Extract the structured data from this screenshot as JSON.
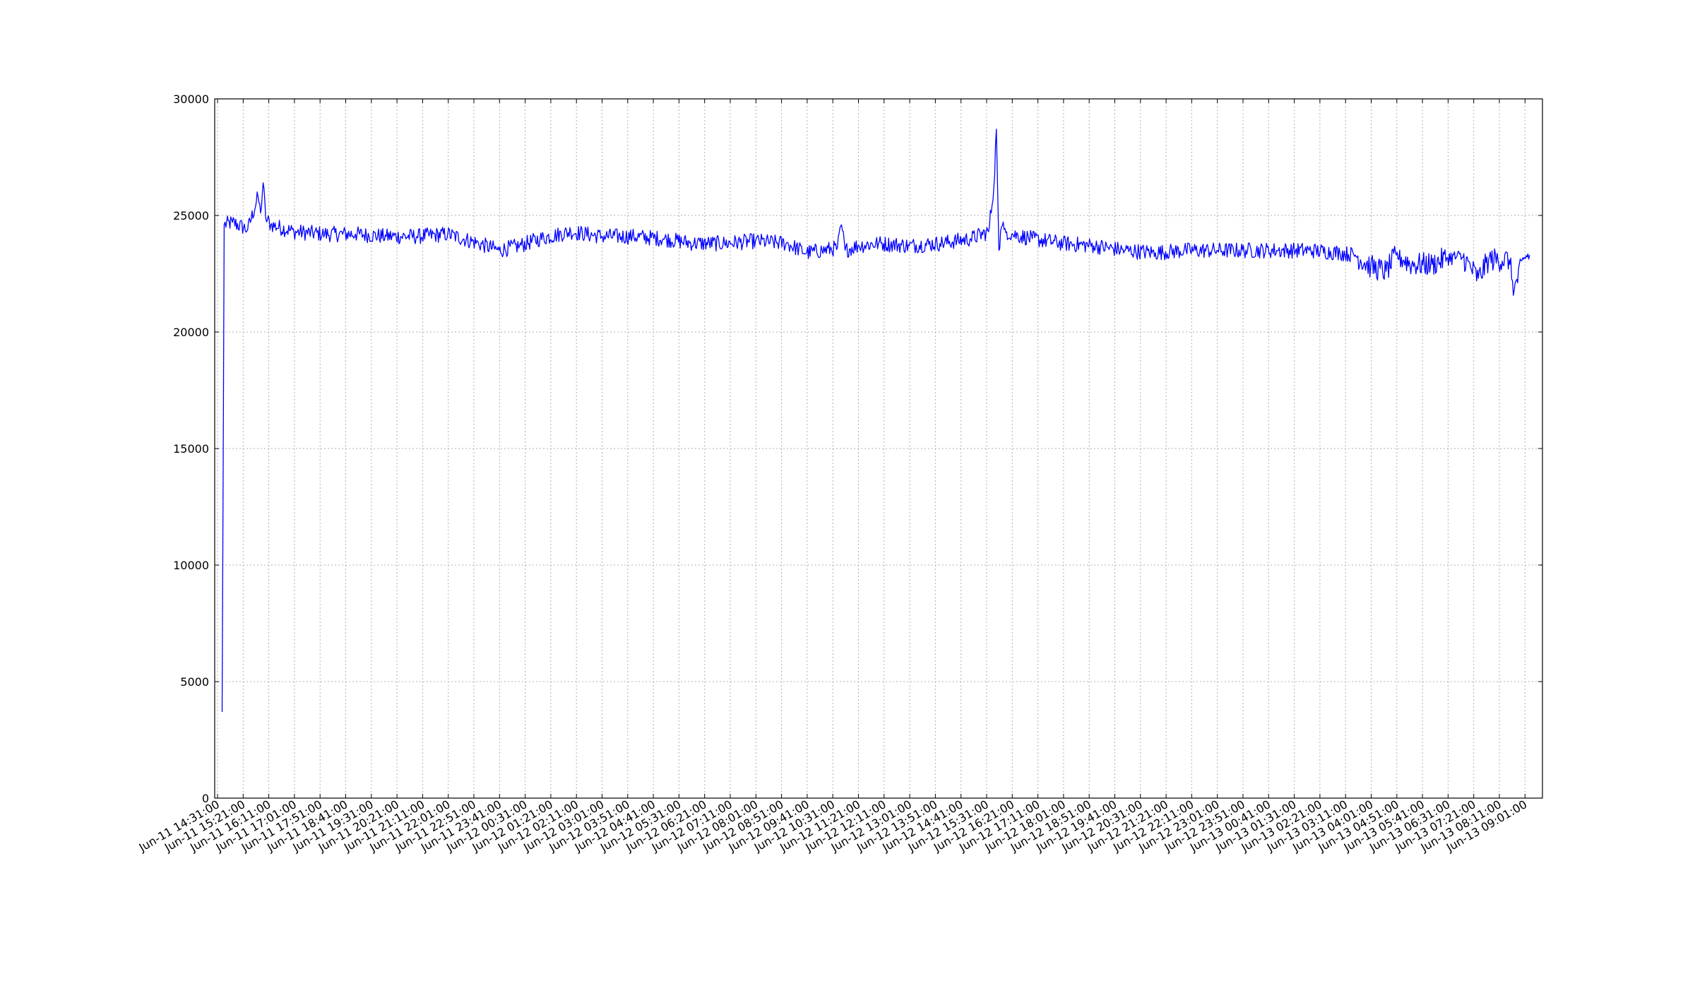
{
  "chart_data": {
    "type": "line",
    "title": "",
    "xlabel": "",
    "ylabel": "",
    "ylim": [
      0,
      30000
    ],
    "yticks": [
      0,
      5000,
      10000,
      15000,
      20000,
      25000,
      30000
    ],
    "grid": true,
    "legend": "none",
    "series_color": "#0000ff",
    "x_tick_labels": [
      "Jun-11 14:31:00",
      "Jun-11 15:21:00",
      "Jun-11 16:11:00",
      "Jun-11 17:01:00",
      "Jun-11 17:51:00",
      "Jun-11 18:41:00",
      "Jun-11 19:31:00",
      "Jun-11 20:21:00",
      "Jun-11 21:11:00",
      "Jun-11 22:01:00",
      "Jun-11 22:51:00",
      "Jun-11 23:41:00",
      "Jun-12 00:31:00",
      "Jun-12 01:21:00",
      "Jun-12 02:11:00",
      "Jun-12 03:01:00",
      "Jun-12 03:51:00",
      "Jun-12 04:41:00",
      "Jun-12 05:31:00",
      "Jun-12 06:21:00",
      "Jun-12 07:11:00",
      "Jun-12 08:01:00",
      "Jun-12 08:51:00",
      "Jun-12 09:41:00",
      "Jun-12 10:31:00",
      "Jun-12 11:21:00",
      "Jun-12 12:11:00",
      "Jun-12 13:01:00",
      "Jun-12 13:51:00",
      "Jun-12 14:41:00",
      "Jun-12 15:31:00",
      "Jun-12 16:21:00",
      "Jun-12 17:11:00",
      "Jun-12 18:01:00",
      "Jun-12 18:51:00",
      "Jun-12 19:41:00",
      "Jun-12 20:31:00",
      "Jun-12 21:21:00",
      "Jun-12 22:11:00",
      "Jun-12 23:01:00",
      "Jun-12 23:51:00",
      "Jun-13 00:41:00",
      "Jun-13 01:31:00",
      "Jun-13 02:21:00",
      "Jun-13 03:11:00",
      "Jun-13 04:01:00",
      "Jun-13 04:51:00",
      "Jun-13 05:41:00",
      "Jun-13 06:31:00",
      "Jun-13 07:21:00",
      "Jun-13 08:11:00",
      "Jun-13 09:01:00"
    ],
    "series": [
      {
        "x": [
          "Jun-11 14:40:00",
          "Jun-11 14:44:00",
          "Jun-11 15:00:00",
          "Jun-11 15:30:00",
          "Jun-11 15:50:00",
          "Jun-11 15:55:00",
          "Jun-11 16:00:00",
          "Jun-11 16:05:00",
          "Jun-11 16:15:00",
          "Jun-11 17:00:00",
          "Jun-11 18:00:00",
          "Jun-11 19:00:00",
          "Jun-11 20:00:00",
          "Jun-11 21:00:00",
          "Jun-11 22:00:00",
          "Jun-11 23:00:00",
          "Jun-11 23:40:00",
          "Jun-12 00:20:00",
          "Jun-12 01:00:00",
          "Jun-12 02:00:00",
          "Jun-12 03:00:00",
          "Jun-12 04:00:00",
          "Jun-12 05:00:00",
          "Jun-12 06:00:00",
          "Jun-12 07:00:00",
          "Jun-12 08:00:00",
          "Jun-12 09:00:00",
          "Jun-12 09:40:00",
          "Jun-12 10:10:00",
          "Jun-12 10:40:00",
          "Jun-12 10:48:00",
          "Jun-12 10:55:00",
          "Jun-12 11:20:00",
          "Jun-12 12:00:00",
          "Jun-12 13:00:00",
          "Jun-12 14:00:00",
          "Jun-12 15:00:00",
          "Jun-12 15:35:00",
          "Jun-12 15:45:00",
          "Jun-12 15:50:00",
          "Jun-12 15:55:00",
          "Jun-12 16:00:00",
          "Jun-12 16:05:00",
          "Jun-12 16:10:00",
          "Jun-12 16:20:00",
          "Jun-12 17:00:00",
          "Jun-12 18:00:00",
          "Jun-12 19:00:00",
          "Jun-12 20:00:00",
          "Jun-12 21:00:00",
          "Jun-12 22:00:00",
          "Jun-12 23:00:00",
          "Jun-13 00:00:00",
          "Jun-13 01:00:00",
          "Jun-13 02:00:00",
          "Jun-13 03:00:00",
          "Jun-13 03:30:00",
          "Jun-13 04:00:00",
          "Jun-13 04:30:00",
          "Jun-13 04:50:00",
          "Jun-13 05:20:00",
          "Jun-13 06:00:00",
          "Jun-13 06:30:00",
          "Jun-13 07:00:00",
          "Jun-13 07:30:00",
          "Jun-13 07:50:00",
          "Jun-13 08:30:00",
          "Jun-13 08:40:00",
          "Jun-13 09:00:00",
          "Jun-13 09:10:00"
        ],
        "y": [
          3700,
          24600,
          24700,
          24400,
          25800,
          25100,
          26400,
          24900,
          24600,
          24300,
          24200,
          24200,
          24100,
          24100,
          24200,
          23800,
          23500,
          23700,
          24000,
          24300,
          24100,
          24100,
          24000,
          23800,
          23800,
          23900,
          23800,
          23400,
          23500,
          23600,
          24600,
          23500,
          23700,
          23800,
          23700,
          23800,
          24000,
          24300,
          26200,
          28700,
          23500,
          24500,
          24400,
          24300,
          24200,
          24000,
          23800,
          23700,
          23500,
          23400,
          23500,
          23500,
          23500,
          23500,
          23500,
          23400,
          23300,
          22800,
          22600,
          23300,
          22900,
          22900,
          23200,
          23200,
          22300,
          23100,
          23100,
          21800,
          23200,
          23300
        ]
      }
    ]
  }
}
